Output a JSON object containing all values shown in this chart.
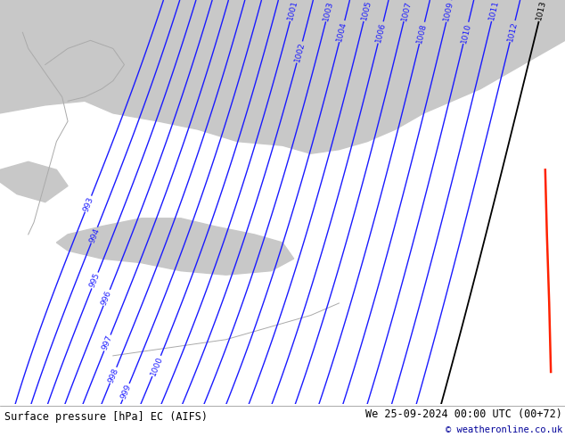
{
  "title_left": "Surface pressure [hPa] EC (AIFS)",
  "title_right": "We 25-09-2024 00:00 UTC (00+72)",
  "copyright": "© weatheronline.co.uk",
  "bg_color": "#c8e8c0",
  "gray_color": "#c8c8c8",
  "contour_color_blue": "#1a1aff",
  "contour_color_black": "#000000",
  "contour_color_red": "#ff2200",
  "bottom_bar_color": "#e0e0e0",
  "figsize": [
    6.34,
    4.9
  ],
  "dpi": 100
}
